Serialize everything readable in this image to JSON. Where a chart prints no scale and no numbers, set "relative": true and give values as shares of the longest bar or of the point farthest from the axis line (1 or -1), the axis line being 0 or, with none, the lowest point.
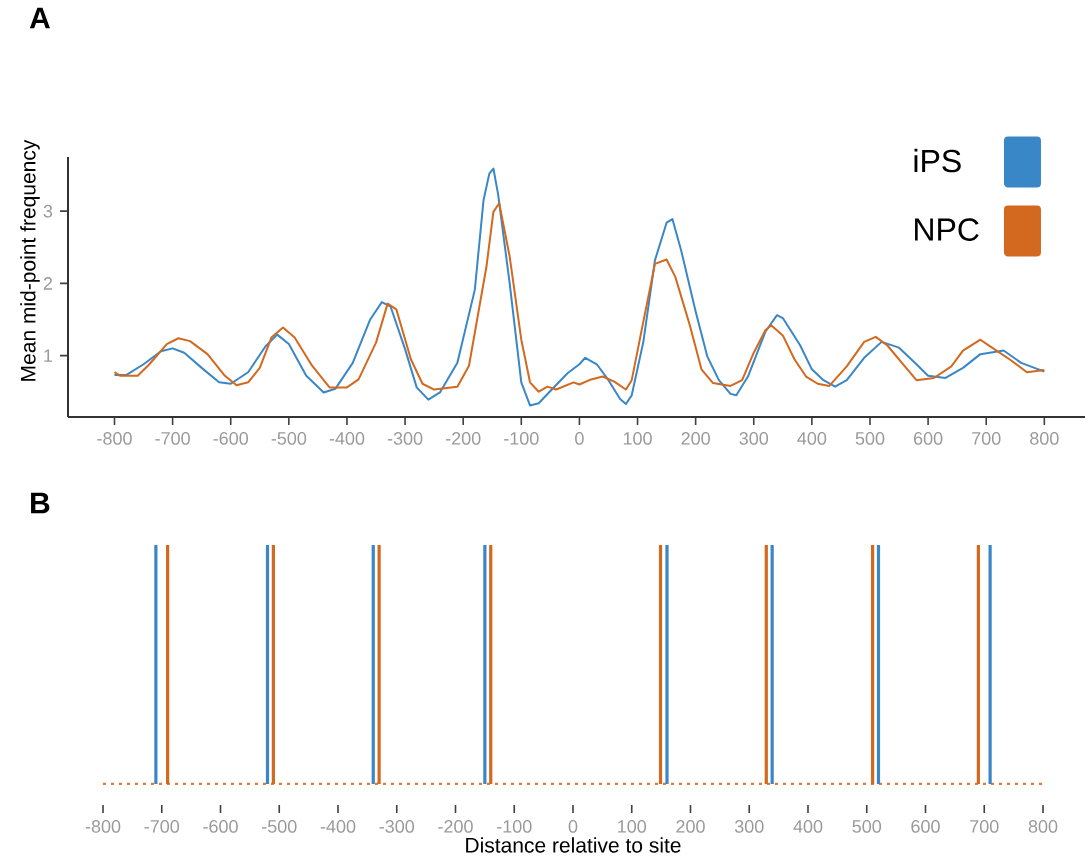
{
  "chart_data": [
    {
      "type": "line",
      "title": "A",
      "ylabel": "Mean mid-point frequency",
      "xlim": [
        -880,
        870
      ],
      "ylim": [
        0.15,
        3.75
      ],
      "xticks": [
        -800,
        -700,
        -600,
        -500,
        -400,
        -300,
        -200,
        -100,
        0,
        100,
        200,
        300,
        400,
        500,
        600,
        700,
        800
      ],
      "yticks": [
        1,
        2,
        3
      ],
      "legend": "top right",
      "series": [
        {
          "name": "iPS",
          "color": "#3a87c8",
          "x": [
            -800,
            -780,
            -750,
            -720,
            -700,
            -680,
            -650,
            -620,
            -600,
            -570,
            -540,
            -520,
            -500,
            -470,
            -440,
            -420,
            -390,
            -360,
            -340,
            -325,
            -300,
            -280,
            -260,
            -240,
            -210,
            -180,
            -165,
            -155,
            -148,
            -140,
            -120,
            -100,
            -85,
            -70,
            -50,
            -20,
            0,
            10,
            30,
            50,
            70,
            80,
            90,
            110,
            130,
            150,
            160,
            175,
            200,
            220,
            240,
            260,
            270,
            290,
            320,
            340,
            350,
            380,
            400,
            420,
            440,
            460,
            490,
            520,
            550,
            580,
            600,
            630,
            660,
            690,
            730,
            760,
            790,
            800
          ],
          "values": [
            0.73,
            0.73,
            0.88,
            1.06,
            1.1,
            1.04,
            0.83,
            0.63,
            0.61,
            0.77,
            1.13,
            1.29,
            1.16,
            0.72,
            0.49,
            0.54,
            0.9,
            1.5,
            1.74,
            1.68,
            1.09,
            0.56,
            0.39,
            0.49,
            0.9,
            1.91,
            3.15,
            3.52,
            3.59,
            3.24,
            2.0,
            0.63,
            0.31,
            0.34,
            0.51,
            0.76,
            0.88,
            0.97,
            0.88,
            0.66,
            0.4,
            0.33,
            0.45,
            1.19,
            2.32,
            2.84,
            2.89,
            2.46,
            1.61,
            0.99,
            0.66,
            0.47,
            0.45,
            0.71,
            1.33,
            1.56,
            1.52,
            1.14,
            0.81,
            0.66,
            0.57,
            0.66,
            0.97,
            1.19,
            1.11,
            0.88,
            0.72,
            0.69,
            0.83,
            1.02,
            1.07,
            0.9,
            0.81,
            0.78
          ]
        },
        {
          "name": "NPC",
          "color": "#d2691e",
          "x": [
            -800,
            -790,
            -760,
            -740,
            -710,
            -690,
            -670,
            -640,
            -610,
            -590,
            -570,
            -550,
            -530,
            -510,
            -490,
            -460,
            -430,
            -400,
            -380,
            -350,
            -330,
            -315,
            -290,
            -270,
            -250,
            -210,
            -190,
            -160,
            -148,
            -138,
            -120,
            -100,
            -85,
            -70,
            -55,
            -40,
            -10,
            0,
            20,
            40,
            60,
            80,
            90,
            110,
            130,
            150,
            165,
            190,
            210,
            230,
            260,
            280,
            300,
            320,
            330,
            350,
            370,
            390,
            410,
            430,
            460,
            490,
            510,
            530,
            560,
            580,
            610,
            640,
            660,
            690,
            710,
            740,
            770,
            800
          ],
          "values": [
            0.77,
            0.72,
            0.72,
            0.88,
            1.16,
            1.24,
            1.2,
            1.02,
            0.72,
            0.59,
            0.63,
            0.83,
            1.25,
            1.39,
            1.25,
            0.86,
            0.56,
            0.56,
            0.67,
            1.18,
            1.72,
            1.64,
            0.95,
            0.61,
            0.53,
            0.57,
            0.86,
            2.23,
            2.99,
            3.11,
            2.37,
            1.22,
            0.63,
            0.5,
            0.57,
            0.53,
            0.63,
            0.6,
            0.67,
            0.71,
            0.64,
            0.53,
            0.66,
            1.47,
            2.27,
            2.33,
            2.09,
            1.42,
            0.81,
            0.62,
            0.58,
            0.66,
            1.04,
            1.35,
            1.42,
            1.28,
            0.95,
            0.71,
            0.61,
            0.58,
            0.85,
            1.19,
            1.26,
            1.14,
            0.85,
            0.66,
            0.69,
            0.85,
            1.07,
            1.22,
            1.11,
            0.95,
            0.77,
            0.8
          ]
        }
      ]
    },
    {
      "type": "bar",
      "title": "B",
      "xlabel": "Distance relative to site",
      "relative": true,
      "xlim": [
        -800,
        800
      ],
      "xticks": [
        -800,
        -700,
        -600,
        -500,
        -400,
        -300,
        -200,
        -100,
        0,
        100,
        200,
        300,
        400,
        500,
        600,
        700,
        800
      ],
      "series": [
        {
          "color": "#3a87c8",
          "x": [
            -710,
            -520,
            -340,
            -150,
            160,
            339,
            520,
            710
          ],
          "values": [
            1,
            1,
            1,
            1,
            1,
            1,
            1,
            1
          ]
        },
        {
          "color": "#d2691e",
          "x": [
            -690,
            -510,
            -330,
            -140,
            149,
            329,
            510,
            690
          ],
          "values": [
            1,
            1,
            1,
            1,
            1,
            1,
            1,
            1
          ]
        }
      ],
      "ref_lines": [
        {
          "axis": "y",
          "value": 0,
          "color": "#e07b39",
          "line_style": "dotted"
        }
      ]
    }
  ]
}
